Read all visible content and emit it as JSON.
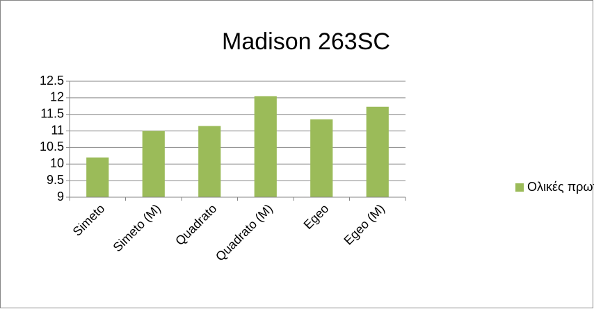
{
  "chart_data": {
    "type": "bar",
    "title": "Madison 263SC",
    "categories": [
      "Simeto",
      "Simeto (M)",
      "Quadrato",
      "Quadrato (M)",
      "Egeo",
      "Egeo (M)"
    ],
    "series": [
      {
        "name": "Ολικές πρωτεΐνες",
        "color": "#9bbb59",
        "values": [
          10.2,
          11.0,
          11.15,
          12.05,
          11.35,
          11.73
        ]
      }
    ],
    "ylim": [
      9,
      12.5
    ],
    "yticks": [
      9,
      9.5,
      10,
      10.5,
      11,
      11.5,
      12,
      12.5
    ],
    "grid": true,
    "legend": "right"
  }
}
